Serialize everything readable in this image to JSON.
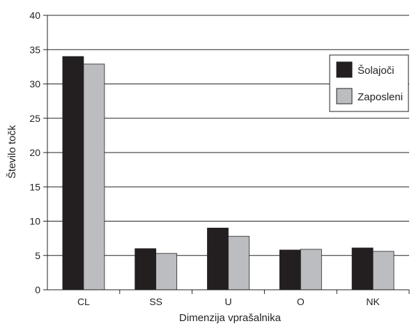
{
  "chart_data": {
    "type": "bar",
    "title": "",
    "xlabel": "Dimenzija vprašalnika",
    "ylabel": "Število točk",
    "ylim": [
      0,
      40
    ],
    "yticks": [
      0,
      5,
      10,
      15,
      20,
      25,
      30,
      35,
      40
    ],
    "grid": true,
    "legend_position": "top-right",
    "categories": [
      "CL",
      "SS",
      "U",
      "O",
      "NK"
    ],
    "series": [
      {
        "name": "Šolajoči",
        "color": "#231f20",
        "values": [
          34,
          6,
          9,
          5.8,
          6.1
        ]
      },
      {
        "name": "Zaposleni",
        "color": "#bcbdc0",
        "values": [
          32.9,
          5.3,
          7.8,
          5.9,
          5.6
        ]
      }
    ]
  }
}
